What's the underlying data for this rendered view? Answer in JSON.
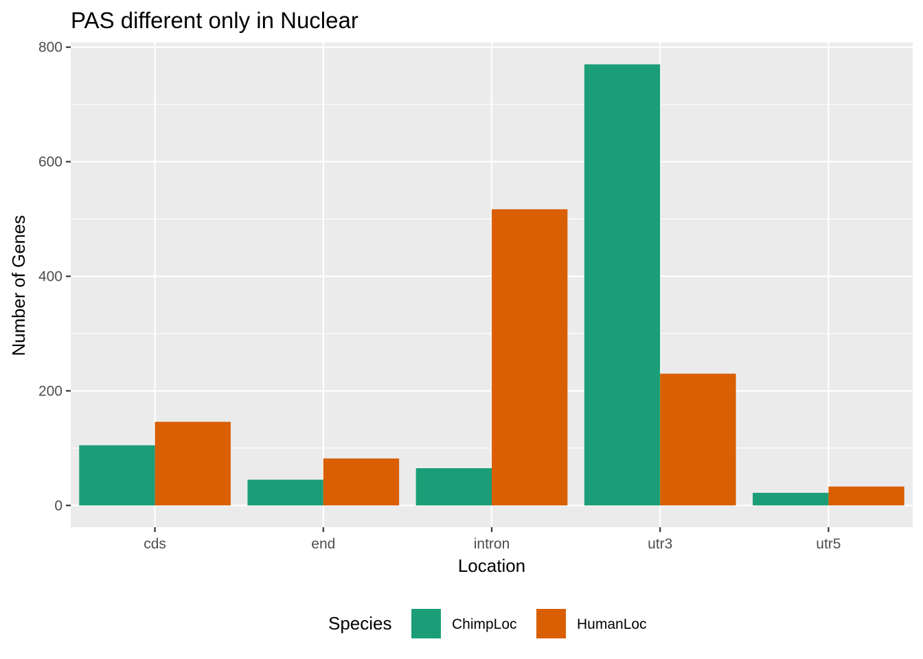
{
  "chart_data": {
    "type": "bar",
    "title": "PAS different only in Nuclear",
    "xlabel": "Location",
    "ylabel": "Number of Genes",
    "categories": [
      "cds",
      "end",
      "intron",
      "utr3",
      "utr5"
    ],
    "series": [
      {
        "name": "ChimpLoc",
        "color": "#1b9e77",
        "values": [
          105,
          45,
          65,
          770,
          22
        ]
      },
      {
        "name": "HumanLoc",
        "color": "#d95f02",
        "values": [
          146,
          82,
          517,
          230,
          33
        ]
      }
    ],
    "ylim": [
      -38,
      808
    ],
    "yticks": [
      0,
      200,
      400,
      600,
      800
    ],
    "grid": true,
    "panel_background": "#ebebeb",
    "legend": {
      "title": "Species",
      "position": "bottom"
    }
  }
}
